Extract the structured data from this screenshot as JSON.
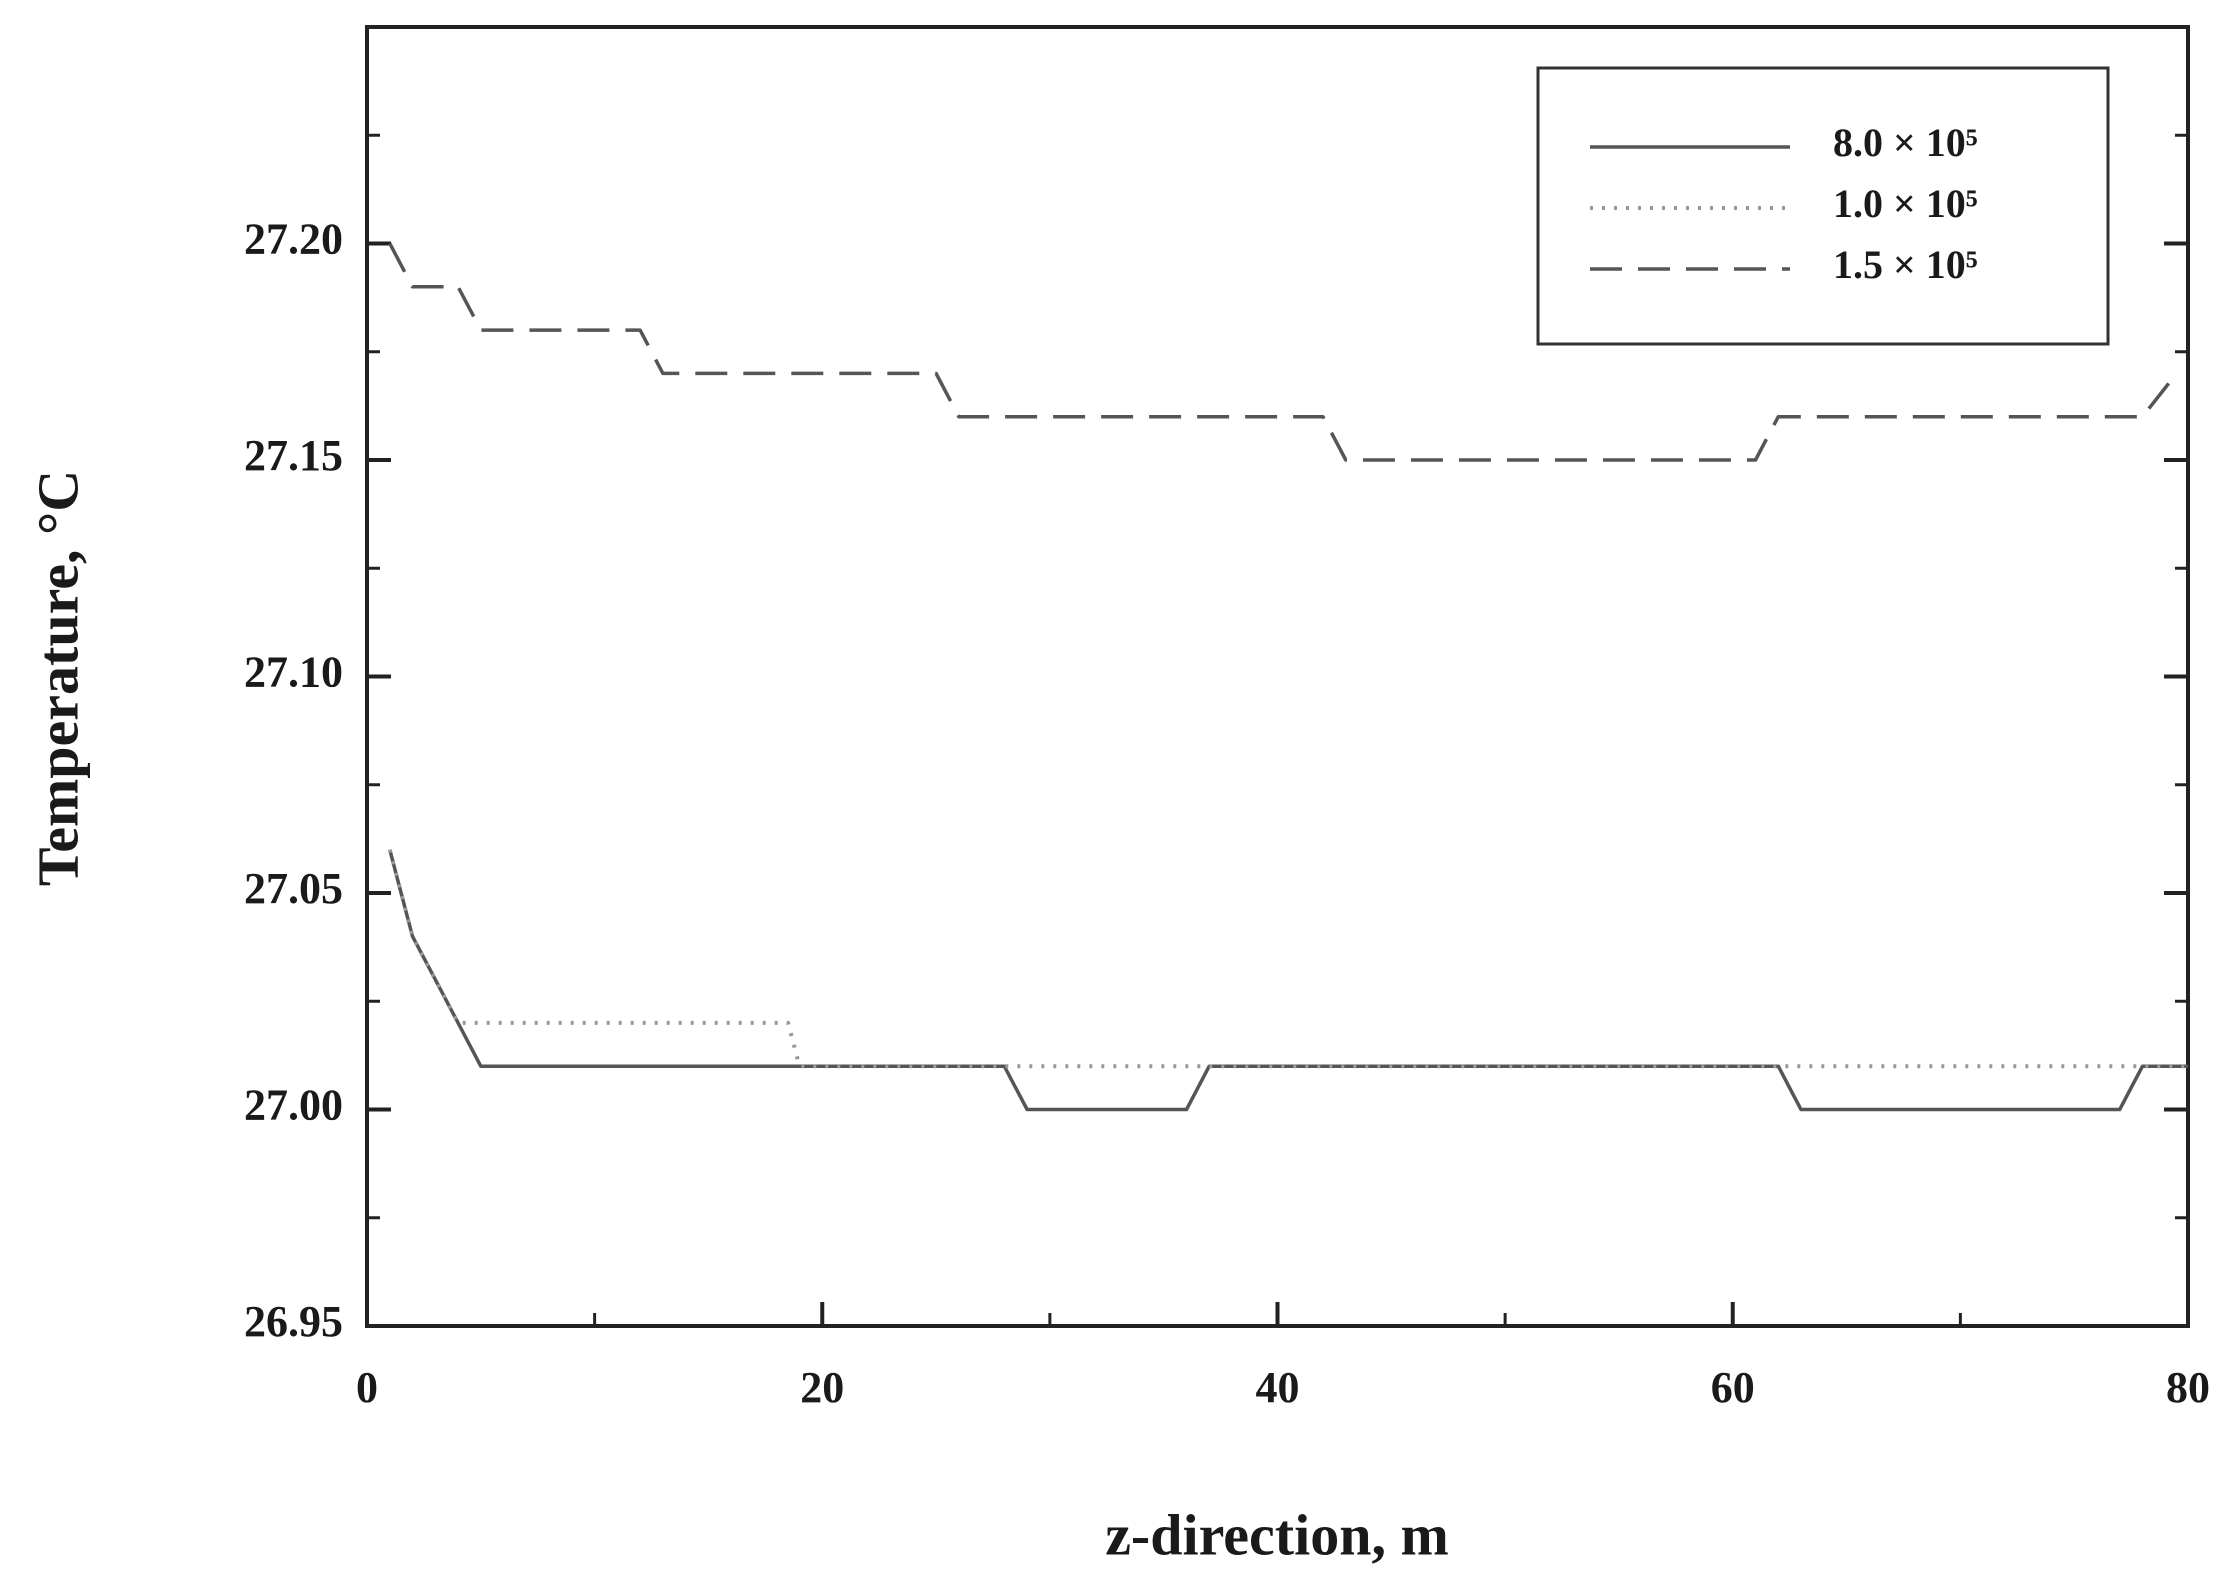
{
  "chart_data": {
    "type": "line",
    "xlabel": "z-direction, m",
    "ylabel": "Temperature, °C",
    "xlim": [
      0,
      80
    ],
    "ylim": [
      26.95,
      27.25
    ],
    "xticks": [
      0,
      20,
      40,
      60,
      80
    ],
    "yticks": [
      26.95,
      {
        "value": 27.0,
        "label": "27.00"
      },
      27.05,
      {
        "value": 27.1,
        "label": "27.10"
      },
      27.15,
      {
        "value": 27.2,
        "label": "27.20"
      }
    ],
    "xminor_ticks": [
      10,
      30,
      50,
      70
    ],
    "yminor_ticks": [
      26.975,
      27.025,
      27.075,
      27.125,
      27.175,
      27.225
    ],
    "grid": false,
    "legend": "upper right",
    "series": [
      {
        "name": "8.0 × 10⁵",
        "color": "#555555",
        "style": "solid",
        "x": [
          1,
          1.5,
          2,
          3,
          4,
          5,
          6,
          7,
          28,
          29,
          36,
          37,
          62,
          63,
          77,
          78,
          80
        ],
        "values": [
          27.06,
          27.05,
          27.04,
          27.03,
          27.02,
          27.01,
          27.01,
          27.01,
          27.01,
          27.0,
          27.0,
          27.01,
          27.01,
          27.0,
          27.0,
          27.01,
          27.01
        ]
      },
      {
        "name": "1.0 × 10⁵",
        "color": "#999999",
        "style": "dotted",
        "x": [
          1,
          2,
          4,
          18.5,
          19,
          80
        ],
        "values": [
          27.06,
          27.04,
          27.02,
          27.02,
          27.01,
          27.01
        ]
      },
      {
        "name": "1.5 × 10⁵",
        "color": "#555555",
        "style": "dashed",
        "x": [
          1,
          2,
          4,
          5,
          12,
          13,
          25,
          26,
          42,
          43,
          61,
          62,
          78,
          79.5
        ],
        "values": [
          27.2,
          27.19,
          27.19,
          27.18,
          27.18,
          27.17,
          27.17,
          27.16,
          27.16,
          27.15,
          27.15,
          27.16,
          27.16,
          27.17
        ]
      }
    ]
  }
}
